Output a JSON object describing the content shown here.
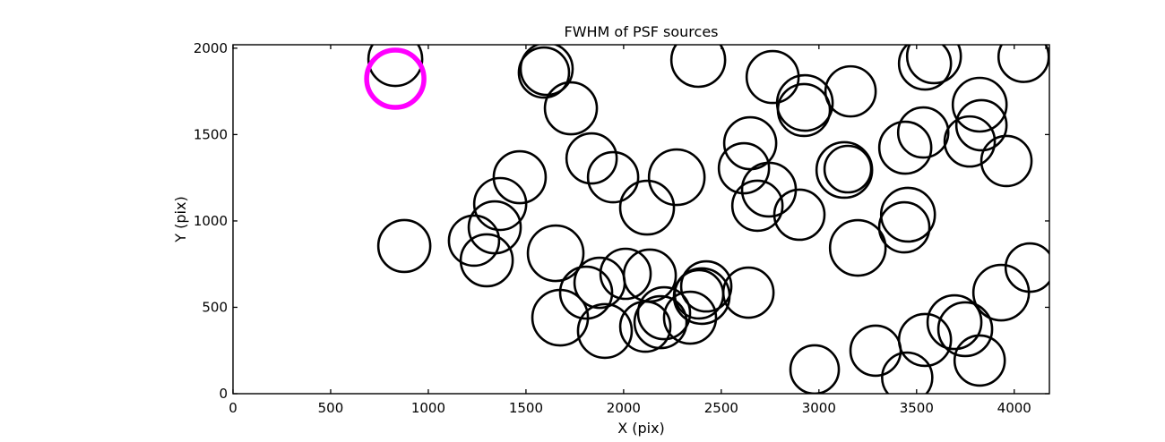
{
  "figure": {
    "background": "#ffffff",
    "frame_color": "#000000"
  },
  "chart_data": {
    "type": "scatter",
    "title": "FWHM of PSF sources",
    "xlabel": "X (pix)",
    "ylabel": "Y (pix)",
    "xlim": [
      0,
      4180
    ],
    "ylim": [
      0,
      2020
    ],
    "xticks": [
      0,
      500,
      1000,
      1500,
      2000,
      2500,
      3000,
      3500,
      4000
    ],
    "yticks": [
      0,
      500,
      1000,
      1500,
      2000
    ],
    "grid": false,
    "legend": "none",
    "tick_direction": "in",
    "marker_style": "unfilled circle, radius proportional to FWHM",
    "series": [
      {
        "name": "PSF sources",
        "color": "#000000",
        "stroke_width": 2.6,
        "points": [
          {
            "x": 831,
            "y": 1937,
            "r": 30
          },
          {
            "x": 1592,
            "y": 1859,
            "r": 28
          },
          {
            "x": 1606,
            "y": 1880,
            "r": 29
          },
          {
            "x": 1730,
            "y": 1652,
            "r": 29
          },
          {
            "x": 1836,
            "y": 1362,
            "r": 28
          },
          {
            "x": 1946,
            "y": 1253,
            "r": 28
          },
          {
            "x": 1468,
            "y": 1253,
            "r": 29
          },
          {
            "x": 1368,
            "y": 1098,
            "r": 29
          },
          {
            "x": 1340,
            "y": 963,
            "r": 29
          },
          {
            "x": 1234,
            "y": 886,
            "r": 28
          },
          {
            "x": 1299,
            "y": 772,
            "r": 29
          },
          {
            "x": 2272,
            "y": 1253,
            "r": 31
          },
          {
            "x": 2120,
            "y": 1077,
            "r": 30
          },
          {
            "x": 2382,
            "y": 1932,
            "r": 30
          },
          {
            "x": 2763,
            "y": 1833,
            "r": 29
          },
          {
            "x": 2928,
            "y": 1683,
            "r": 31
          },
          {
            "x": 2923,
            "y": 1642,
            "r": 29
          },
          {
            "x": 3162,
            "y": 1750,
            "r": 28
          },
          {
            "x": 2648,
            "y": 1450,
            "r": 29
          },
          {
            "x": 2616,
            "y": 1305,
            "r": 28
          },
          {
            "x": 2744,
            "y": 1181,
            "r": 30
          },
          {
            "x": 2685,
            "y": 1088,
            "r": 28
          },
          {
            "x": 2900,
            "y": 1036,
            "r": 28
          },
          {
            "x": 3130,
            "y": 1295,
            "r": 31
          },
          {
            "x": 3148,
            "y": 1300,
            "r": 26
          },
          {
            "x": 3589,
            "y": 1953,
            "r": 30
          },
          {
            "x": 3543,
            "y": 1911,
            "r": 29
          },
          {
            "x": 4048,
            "y": 1950,
            "r": 28
          },
          {
            "x": 3823,
            "y": 1673,
            "r": 30
          },
          {
            "x": 3534,
            "y": 1512,
            "r": 28
          },
          {
            "x": 3442,
            "y": 1424,
            "r": 29
          },
          {
            "x": 3832,
            "y": 1554,
            "r": 28
          },
          {
            "x": 3772,
            "y": 1460,
            "r": 28
          },
          {
            "x": 3960,
            "y": 1347,
            "r": 28
          },
          {
            "x": 4080,
            "y": 730,
            "r": 27
          },
          {
            "x": 3933,
            "y": 585,
            "r": 31
          },
          {
            "x": 877,
            "y": 855,
            "r": 29
          },
          {
            "x": 1652,
            "y": 813,
            "r": 31
          },
          {
            "x": 1808,
            "y": 585,
            "r": 29
          },
          {
            "x": 1877,
            "y": 642,
            "r": 28
          },
          {
            "x": 1675,
            "y": 440,
            "r": 31
          },
          {
            "x": 1904,
            "y": 363,
            "r": 30
          },
          {
            "x": 2111,
            "y": 388,
            "r": 28
          },
          {
            "x": 2189,
            "y": 414,
            "r": 29
          },
          {
            "x": 2010,
            "y": 694,
            "r": 28
          },
          {
            "x": 2134,
            "y": 684,
            "r": 29
          },
          {
            "x": 2400,
            "y": 565,
            "r": 31
          },
          {
            "x": 2386,
            "y": 575,
            "r": 27
          },
          {
            "x": 2423,
            "y": 621,
            "r": 28
          },
          {
            "x": 2340,
            "y": 440,
            "r": 29
          },
          {
            "x": 2207,
            "y": 466,
            "r": 29
          },
          {
            "x": 2639,
            "y": 585,
            "r": 28
          },
          {
            "x": 3199,
            "y": 844,
            "r": 31
          },
          {
            "x": 2978,
            "y": 140,
            "r": 27
          },
          {
            "x": 3290,
            "y": 249,
            "r": 28
          },
          {
            "x": 3456,
            "y": 1036,
            "r": 30
          },
          {
            "x": 3437,
            "y": 963,
            "r": 28
          },
          {
            "x": 3694,
            "y": 414,
            "r": 30
          },
          {
            "x": 3749,
            "y": 373,
            "r": 30
          },
          {
            "x": 3543,
            "y": 311,
            "r": 29
          },
          {
            "x": 3823,
            "y": 192,
            "r": 28
          },
          {
            "x": 3452,
            "y": 93,
            "r": 28
          }
        ]
      },
      {
        "name": "highlighted source",
        "color": "#ff00ff",
        "stroke_width": 5.5,
        "points": [
          {
            "x": 831,
            "y": 1823,
            "r": 32
          }
        ]
      }
    ]
  }
}
